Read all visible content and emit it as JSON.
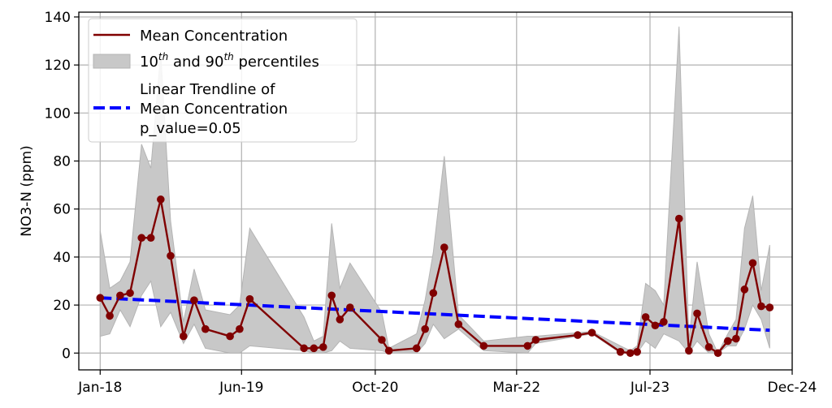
{
  "chart_data": {
    "type": "line",
    "title": "",
    "xlabel": "",
    "ylabel": "NO3-N (ppm)",
    "x_ticks": [
      "Jan-18",
      "Jun-19",
      "Oct-20",
      "Mar-22",
      "Jul-23",
      "Dec-24"
    ],
    "y_ticks": [
      "0",
      "20",
      "40",
      "60",
      "80",
      "100",
      "120",
      "140"
    ],
    "xlim": [
      "2017-10-15",
      "2024-12-01"
    ],
    "ylim": [
      -7,
      142
    ],
    "grid": true,
    "legend_position": "top-left",
    "colors": {
      "mean": "#800000",
      "band": "#c8c8c8",
      "band_edge": "#b4b4b4",
      "trend": "#0000ff"
    },
    "legend": {
      "mean_label": "Mean Concentration",
      "band_label_a": "10",
      "band_sup_a": "th",
      "band_label_b": " and 90",
      "band_sup_b": "th",
      "band_label_c": " percentiles",
      "trend_line1": "Linear Trendline of",
      "trend_line2": "Mean Concentration",
      "trend_line3": "p_value=0.05"
    },
    "series": [
      {
        "name": "Mean Concentration",
        "points": [
          [
            "2018-01-01",
            23
          ],
          [
            "2018-02-05",
            15.5
          ],
          [
            "2018-03-15",
            24
          ],
          [
            "2018-04-20",
            25
          ],
          [
            "2018-06-01",
            48
          ],
          [
            "2018-07-05",
            48
          ],
          [
            "2018-08-10",
            64
          ],
          [
            "2018-09-15",
            40.5
          ],
          [
            "2018-11-01",
            7
          ],
          [
            "2018-12-10",
            22
          ],
          [
            "2019-01-20",
            10
          ],
          [
            "2019-04-20",
            7
          ],
          [
            "2019-05-25",
            10
          ],
          [
            "2019-07-01",
            22.5
          ],
          [
            "2020-01-15",
            2
          ],
          [
            "2020-02-20",
            2
          ],
          [
            "2020-03-25",
            2.5
          ],
          [
            "2020-04-25",
            24
          ],
          [
            "2020-05-25",
            14
          ],
          [
            "2020-07-01",
            19
          ],
          [
            "2020-10-25",
            5.5
          ],
          [
            "2020-11-20",
            1
          ],
          [
            "2021-03-01",
            2
          ],
          [
            "2021-04-01",
            10
          ],
          [
            "2021-05-01",
            25
          ],
          [
            "2021-06-10",
            44
          ],
          [
            "2021-08-01",
            12
          ],
          [
            "2021-11-01",
            3
          ],
          [
            "2022-04-10",
            3
          ],
          [
            "2022-05-10",
            5.5
          ],
          [
            "2022-10-10",
            7.5
          ],
          [
            "2022-12-01",
            8.5
          ],
          [
            "2023-03-15",
            0.5
          ],
          [
            "2023-04-20",
            0
          ],
          [
            "2023-05-15",
            0.5
          ],
          [
            "2023-06-15",
            15
          ],
          [
            "2023-07-20",
            11.5
          ],
          [
            "2023-08-20",
            13
          ],
          [
            "2023-10-15",
            56
          ],
          [
            "2023-11-20",
            1
          ],
          [
            "2023-12-20",
            16.5
          ],
          [
            "2024-02-01",
            2.5
          ],
          [
            "2024-03-05",
            0
          ],
          [
            "2024-04-10",
            5
          ],
          [
            "2024-05-10",
            6
          ],
          [
            "2024-06-10",
            26.5
          ],
          [
            "2024-07-10",
            37.5
          ],
          [
            "2024-08-10",
            19.5
          ],
          [
            "2024-09-10",
            19
          ]
        ]
      },
      {
        "name": "10th and 90th percentiles",
        "upper": [
          [
            "2018-01-01",
            51
          ],
          [
            "2018-02-05",
            27
          ],
          [
            "2018-03-15",
            30
          ],
          [
            "2018-04-20",
            38
          ],
          [
            "2018-06-01",
            87
          ],
          [
            "2018-07-05",
            77
          ],
          [
            "2018-08-10",
            125
          ],
          [
            "2018-09-15",
            55
          ],
          [
            "2018-11-01",
            13
          ],
          [
            "2018-12-10",
            35
          ],
          [
            "2019-01-20",
            18
          ],
          [
            "2019-04-20",
            16
          ],
          [
            "2019-05-25",
            20
          ],
          [
            "2019-07-01",
            52
          ],
          [
            "2020-01-15",
            15
          ],
          [
            "2020-02-20",
            5
          ],
          [
            "2020-03-25",
            7
          ],
          [
            "2020-04-25",
            54
          ],
          [
            "2020-05-25",
            27
          ],
          [
            "2020-07-01",
            37.5
          ],
          [
            "2020-10-25",
            17
          ],
          [
            "2020-11-20",
            2
          ],
          [
            "2021-03-01",
            8
          ],
          [
            "2021-04-01",
            22
          ],
          [
            "2021-05-01",
            42
          ],
          [
            "2021-06-10",
            82
          ],
          [
            "2021-08-01",
            16
          ],
          [
            "2021-11-01",
            5
          ],
          [
            "2022-04-10",
            7
          ],
          [
            "2022-05-10",
            7
          ],
          [
            "2022-10-10",
            8.5
          ],
          [
            "2022-12-01",
            9
          ],
          [
            "2023-03-15",
            3
          ],
          [
            "2023-04-20",
            1
          ],
          [
            "2023-05-15",
            3
          ],
          [
            "2023-06-15",
            29
          ],
          [
            "2023-07-20",
            26
          ],
          [
            "2023-08-20",
            20
          ],
          [
            "2023-10-15",
            136
          ],
          [
            "2023-11-20",
            5
          ],
          [
            "2023-12-20",
            38
          ],
          [
            "2024-02-01",
            8
          ],
          [
            "2024-03-05",
            0
          ],
          [
            "2024-04-10",
            8
          ],
          [
            "2024-05-10",
            14
          ],
          [
            "2024-06-10",
            52
          ],
          [
            "2024-07-10",
            65.5
          ],
          [
            "2024-08-10",
            26
          ],
          [
            "2024-09-10",
            45
          ]
        ],
        "lower": [
          [
            "2018-01-01",
            7
          ],
          [
            "2018-02-05",
            8
          ],
          [
            "2018-03-15",
            18
          ],
          [
            "2018-04-20",
            11
          ],
          [
            "2018-06-01",
            24
          ],
          [
            "2018-07-05",
            30
          ],
          [
            "2018-08-10",
            11
          ],
          [
            "2018-09-15",
            17
          ],
          [
            "2018-11-01",
            4
          ],
          [
            "2018-12-10",
            12
          ],
          [
            "2019-01-20",
            2
          ],
          [
            "2019-04-20",
            0
          ],
          [
            "2019-05-25",
            0
          ],
          [
            "2019-07-01",
            3
          ],
          [
            "2020-01-15",
            1
          ],
          [
            "2020-02-20",
            0
          ],
          [
            "2020-03-25",
            0
          ],
          [
            "2020-04-25",
            1
          ],
          [
            "2020-05-25",
            5
          ],
          [
            "2020-07-01",
            2
          ],
          [
            "2020-10-25",
            1
          ],
          [
            "2020-11-20",
            0
          ],
          [
            "2021-03-01",
            0
          ],
          [
            "2021-04-01",
            4
          ],
          [
            "2021-05-01",
            12
          ],
          [
            "2021-06-10",
            6
          ],
          [
            "2021-08-01",
            10
          ],
          [
            "2021-11-01",
            1
          ],
          [
            "2022-04-10",
            0
          ],
          [
            "2022-05-10",
            4
          ],
          [
            "2022-10-10",
            7
          ],
          [
            "2022-12-01",
            8
          ],
          [
            "2023-03-15",
            0
          ],
          [
            "2023-04-20",
            0
          ],
          [
            "2023-05-15",
            0
          ],
          [
            "2023-06-15",
            5
          ],
          [
            "2023-07-20",
            2
          ],
          [
            "2023-08-20",
            8
          ],
          [
            "2023-10-15",
            5
          ],
          [
            "2023-11-20",
            0
          ],
          [
            "2023-12-20",
            5
          ],
          [
            "2024-02-01",
            0
          ],
          [
            "2024-03-05",
            0
          ],
          [
            "2024-04-10",
            3
          ],
          [
            "2024-05-10",
            3
          ],
          [
            "2024-06-10",
            10
          ],
          [
            "2024-07-10",
            20
          ],
          [
            "2024-08-10",
            14
          ],
          [
            "2024-09-10",
            2
          ]
        ]
      },
      {
        "name": "Linear Trendline of Mean Concentration",
        "points": [
          [
            "2018-01-01",
            23
          ],
          [
            "2024-09-10",
            9.5
          ]
        ]
      }
    ]
  }
}
